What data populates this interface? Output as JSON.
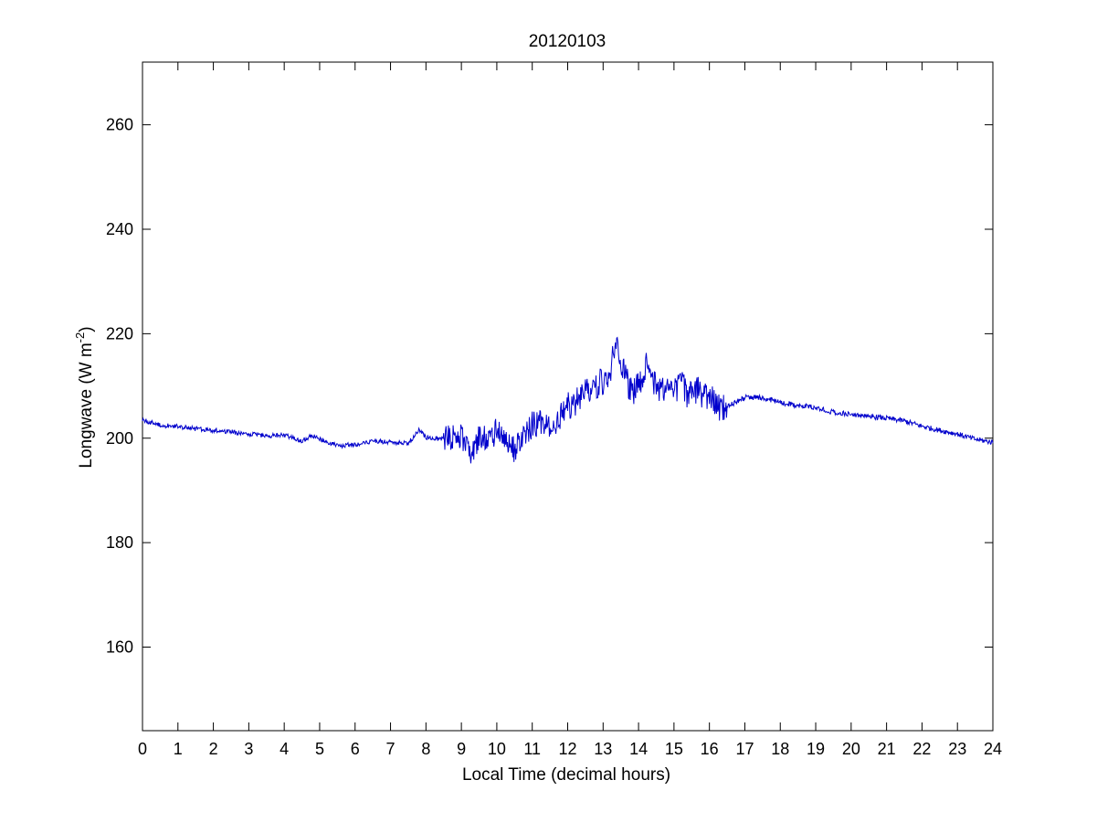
{
  "chart_data": {
    "type": "line",
    "title": "20120103",
    "xlabel": "Local Time (decimal hours)",
    "ylabel": {
      "main": "Longwave (W m",
      "superscript": "-2",
      "suffix": ")"
    },
    "xlim": [
      0,
      24
    ],
    "ylim": [
      144,
      272
    ],
    "x_ticks": [
      "0",
      "1",
      "2",
      "3",
      "4",
      "5",
      "6",
      "7",
      "8",
      "9",
      "10",
      "11",
      "12",
      "13",
      "14",
      "15",
      "16",
      "17",
      "18",
      "19",
      "20",
      "21",
      "22",
      "23",
      "24"
    ],
    "y_ticks": [
      "160",
      "180",
      "200",
      "220",
      "240",
      "260"
    ],
    "grid": false,
    "legend": "none",
    "series": [
      {
        "color": "#0000cc",
        "x": [
          0,
          0.5,
          1,
          1.5,
          2,
          2.5,
          3,
          3.5,
          4,
          4.5,
          4.8,
          5,
          5.5,
          6,
          6.5,
          7,
          7.5,
          7.8,
          8,
          8.5,
          9,
          9.3,
          9.5,
          9.8,
          10,
          10.3,
          10.5,
          10.8,
          11,
          11.3,
          11.5,
          11.8,
          12,
          12.3,
          12.5,
          12.8,
          13,
          13.2,
          13.4,
          13.6,
          13.8,
          14,
          14.2,
          14.4,
          14.6,
          14.8,
          15,
          15.2,
          15.4,
          15.6,
          15.8,
          16,
          16.2,
          16.4,
          16.6,
          16.8,
          17,
          17.5,
          18,
          18.5,
          19,
          19.5,
          20,
          20.5,
          21,
          21.5,
          22,
          22.5,
          23,
          23.5,
          24
        ],
        "y": [
          203.5,
          202.5,
          202.2,
          201.8,
          201.5,
          201.2,
          200.8,
          200.5,
          200.6,
          199.5,
          200.5,
          199.8,
          198.5,
          198.8,
          199.5,
          199.2,
          199.0,
          201.5,
          200.2,
          199.8,
          200.5,
          196.0,
          201.0,
          199.0,
          201.5,
          199.5,
          197.5,
          201.0,
          202.5,
          203.0,
          201.5,
          204.0,
          206.0,
          207.5,
          209.0,
          210.0,
          211.0,
          213.0,
          219.0,
          212.0,
          209.0,
          210.0,
          214.0,
          211.0,
          209.0,
          210.5,
          209.0,
          211.0,
          208.0,
          209.5,
          208.5,
          208.0,
          206.0,
          205.5,
          206.5,
          207.0,
          207.8,
          207.8,
          206.8,
          206.3,
          205.8,
          205.0,
          204.5,
          204.2,
          203.8,
          203.3,
          202.3,
          201.5,
          200.8,
          199.8,
          199.2
        ]
      }
    ]
  }
}
